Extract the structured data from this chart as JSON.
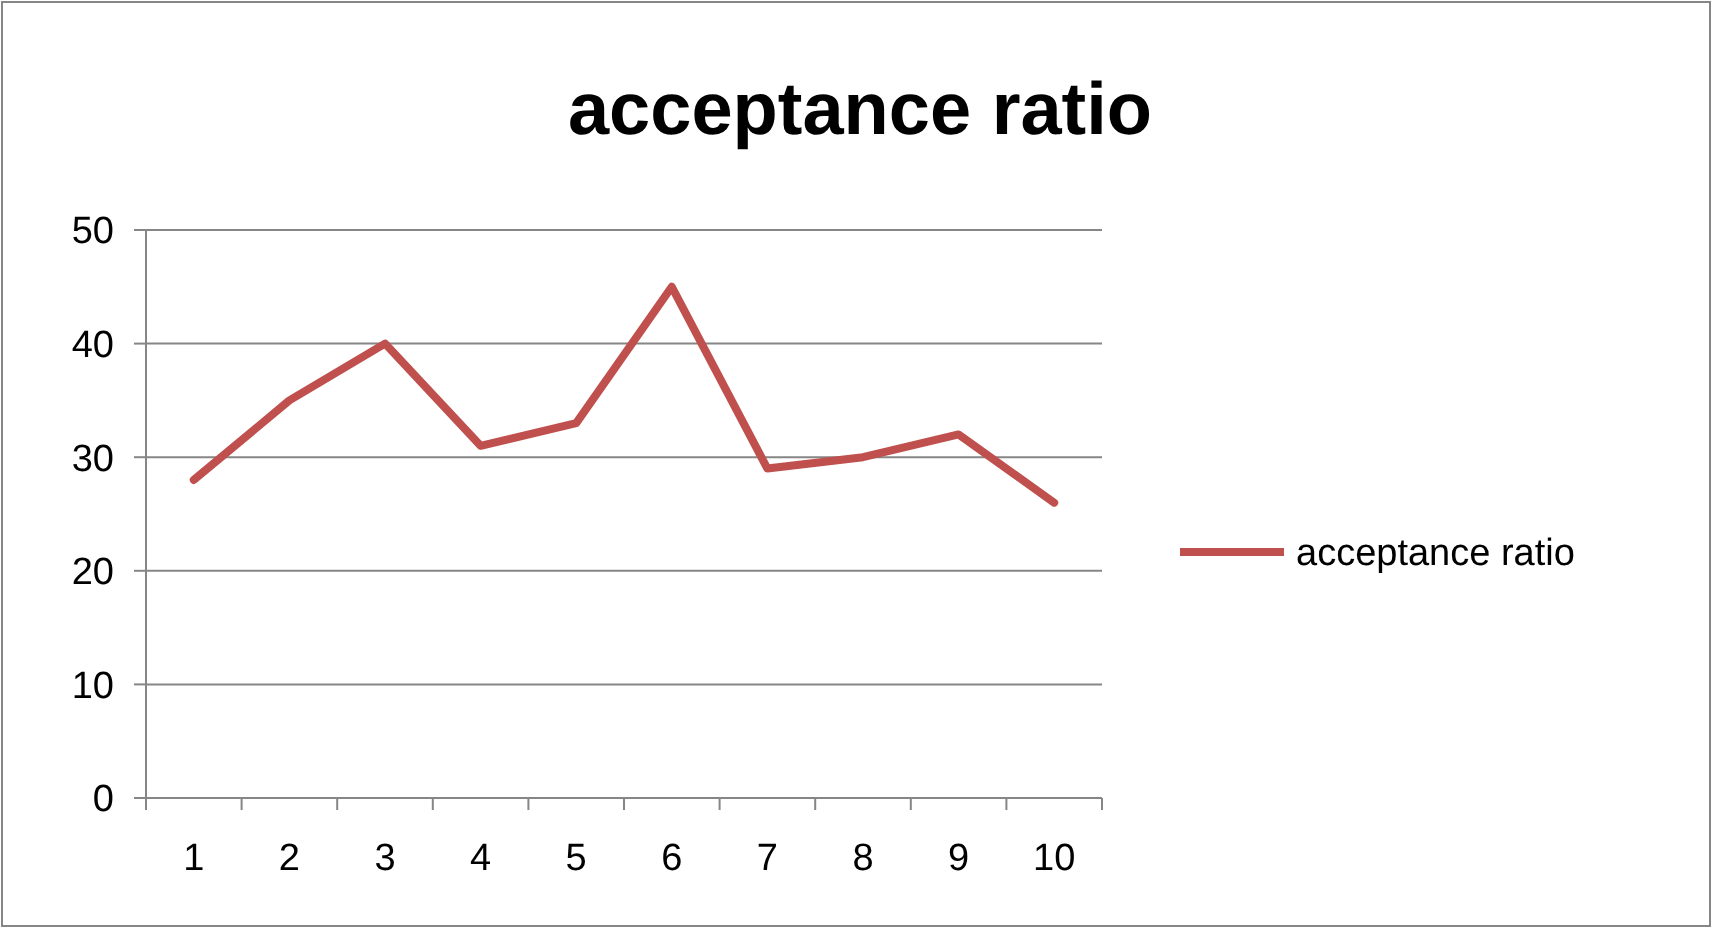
{
  "chart_data": {
    "type": "line",
    "title": "acceptance ratio",
    "categories": [
      "1",
      "2",
      "3",
      "4",
      "5",
      "6",
      "7",
      "8",
      "9",
      "10"
    ],
    "series": [
      {
        "name": "acceptance ratio",
        "color": "#c0504d",
        "values": [
          28,
          35,
          40,
          31,
          33,
          45,
          29,
          30,
          32,
          26
        ]
      }
    ],
    "ylim": [
      0,
      50
    ],
    "yticks": [
      0,
      10,
      20,
      30,
      40,
      50
    ],
    "grid": "y",
    "legend": "right",
    "marker": "none",
    "line_style": "solid"
  }
}
